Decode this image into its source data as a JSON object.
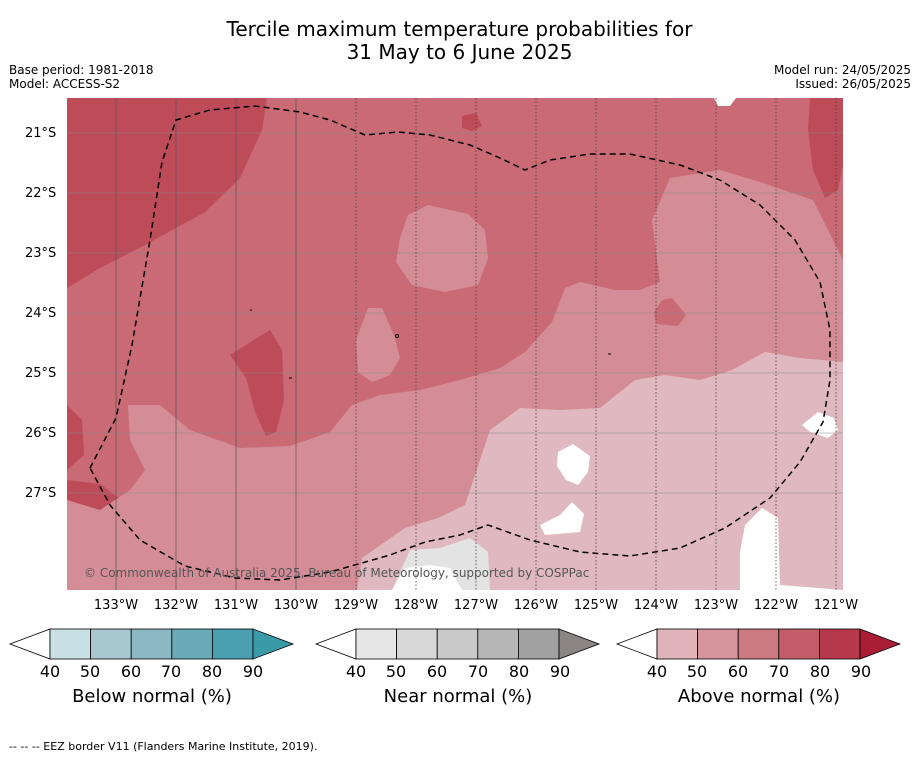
{
  "title": {
    "line1": "Tercile maximum temperature probabilities for",
    "line2": "31 May to 6 June 2025"
  },
  "meta": {
    "base_period": "Base period: 1981-2018",
    "model": "Model: ACCESS-S2",
    "model_run": "Model run: 24/05/2025",
    "issued": "Issued: 26/05/2025"
  },
  "map": {
    "latitude_labels": [
      "21°S",
      "22°S",
      "23°S",
      "24°S",
      "25°S",
      "26°S",
      "27°S"
    ],
    "longitude_labels": [
      "133°W",
      "132°W",
      "131°W",
      "130°W",
      "129°W",
      "128°W",
      "127°W",
      "126°W",
      "125°W",
      "124°W",
      "123°W",
      "122°W",
      "121°W"
    ],
    "copyright": "© Commonwealth of Australia 2025, Bureau of Meteorology, supported by COSPPac",
    "colors": {
      "above_50": "#e0b8bf",
      "above_60": "#d48d96",
      "above_70": "#c96a75",
      "above_80": "#bd4b58",
      "near_60": "#e3e3e3",
      "below_40": "#ffffff"
    }
  },
  "legends": [
    {
      "name": "Below normal (%)",
      "ticks": [
        "40",
        "50",
        "60",
        "70",
        "80",
        "90"
      ],
      "colors": [
        "#c9e1e6",
        "#a7c8ce",
        "#8bb8c2",
        "#6aaab6",
        "#4aa0b0",
        "#3a9aa8"
      ]
    },
    {
      "name": "Near normal (%)",
      "ticks": [
        "40",
        "50",
        "60",
        "70",
        "80",
        "90"
      ],
      "colors": [
        "#e6e6e6",
        "#d8d8d8",
        "#c9c9c9",
        "#b6b6b6",
        "#a1a1a1",
        "#8c8585"
      ]
    },
    {
      "name": "Above normal (%)",
      "ticks": [
        "40",
        "50",
        "60",
        "70",
        "80",
        "90"
      ],
      "colors": [
        "#dfb3b9",
        "#d5939b",
        "#cb7a82",
        "#c25c68",
        "#b7384b",
        "#a91e35"
      ]
    }
  ],
  "footer": "--  --  -- EEZ border V11 (Flanders Marine Institute, 2019)."
}
